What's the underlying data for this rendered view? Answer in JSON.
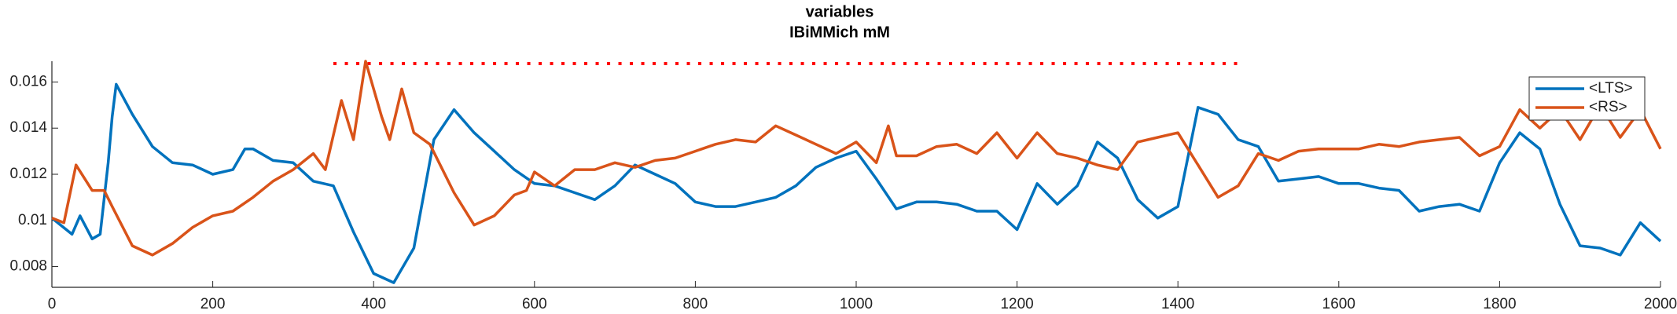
{
  "chart_data": {
    "type": "line",
    "title": "variables",
    "subtitle": "IBiMMich mM",
    "xlim": [
      0,
      2000
    ],
    "xticks": [
      0,
      200,
      400,
      600,
      800,
      1000,
      1200,
      1400,
      1600,
      1800,
      2000
    ],
    "ylim": [
      0.0071,
      0.0169
    ],
    "yticks": [
      0.008,
      0.01,
      0.012,
      0.014,
      0.016
    ],
    "grid": false,
    "legend": "northeast",
    "dotted_line": {
      "x": [
        350,
        1480
      ],
      "value": 0.0168,
      "color": "#ff0000"
    },
    "series": [
      {
        "name": "<LTS>",
        "color": "#0072bd",
        "x": [
          0,
          25,
          35,
          50,
          60,
          70,
          75,
          80,
          100,
          125,
          150,
          175,
          200,
          225,
          240,
          250,
          275,
          300,
          325,
          350,
          375,
          400,
          425,
          450,
          475,
          500,
          525,
          550,
          575,
          600,
          625,
          650,
          675,
          700,
          725,
          750,
          775,
          800,
          825,
          850,
          875,
          900,
          925,
          950,
          975,
          1000,
          1025,
          1050,
          1075,
          1100,
          1125,
          1150,
          1175,
          1200,
          1225,
          1250,
          1275,
          1300,
          1325,
          1350,
          1375,
          1400,
          1425,
          1450,
          1475,
          1500,
          1525,
          1550,
          1575,
          1600,
          1625,
          1650,
          1675,
          1700,
          1725,
          1750,
          1775,
          1800,
          1825,
          1850,
          1875,
          1900,
          1925,
          1950,
          1975,
          2000
        ],
        "values": [
          0.0101,
          0.0094,
          0.0102,
          0.0092,
          0.0094,
          0.0125,
          0.0145,
          0.0159,
          0.0146,
          0.0132,
          0.0125,
          0.0124,
          0.012,
          0.0122,
          0.0131,
          0.0131,
          0.0126,
          0.0125,
          0.0117,
          0.0115,
          0.0095,
          0.0077,
          0.0073,
          0.0088,
          0.0135,
          0.0148,
          0.0138,
          0.013,
          0.0122,
          0.0116,
          0.0115,
          0.0112,
          0.0109,
          0.0115,
          0.0124,
          0.012,
          0.0116,
          0.0108,
          0.0106,
          0.0106,
          0.0108,
          0.011,
          0.0115,
          0.0123,
          0.0127,
          0.013,
          0.0118,
          0.0105,
          0.0108,
          0.0108,
          0.0107,
          0.0104,
          0.0104,
          0.0096,
          0.0116,
          0.0107,
          0.0115,
          0.0134,
          0.0127,
          0.0109,
          0.0101,
          0.0106,
          0.0149,
          0.0146,
          0.0135,
          0.0132,
          0.0117,
          0.0118,
          0.0119,
          0.0116,
          0.0116,
          0.0114,
          0.0113,
          0.0104,
          0.0106,
          0.0107,
          0.0104,
          0.0125,
          0.0138,
          0.0131,
          0.0107,
          0.0089,
          0.0088,
          0.0085,
          0.0099,
          0.0091
        ]
      },
      {
        "name": "<RS>",
        "color": "#d95319",
        "x": [
          0,
          15,
          30,
          50,
          65,
          75,
          100,
          125,
          150,
          175,
          200,
          225,
          250,
          275,
          300,
          325,
          340,
          360,
          375,
          390,
          410,
          420,
          435,
          450,
          470,
          500,
          525,
          550,
          575,
          590,
          600,
          625,
          650,
          675,
          700,
          725,
          750,
          775,
          800,
          825,
          850,
          875,
          900,
          925,
          950,
          975,
          1000,
          1025,
          1040,
          1050,
          1075,
          1100,
          1125,
          1150,
          1175,
          1200,
          1225,
          1250,
          1275,
          1300,
          1325,
          1350,
          1375,
          1400,
          1425,
          1450,
          1475,
          1500,
          1525,
          1550,
          1575,
          1600,
          1625,
          1650,
          1675,
          1700,
          1725,
          1750,
          1775,
          1800,
          1825,
          1850,
          1875,
          1900,
          1925,
          1950,
          1975,
          2000
        ],
        "values": [
          0.0101,
          0.0099,
          0.0124,
          0.0113,
          0.0113,
          0.0106,
          0.0089,
          0.0085,
          0.009,
          0.0097,
          0.0102,
          0.0104,
          0.011,
          0.0117,
          0.0122,
          0.0129,
          0.0122,
          0.0152,
          0.0135,
          0.0169,
          0.0145,
          0.0135,
          0.0157,
          0.0138,
          0.0133,
          0.0112,
          0.0098,
          0.0102,
          0.0111,
          0.0113,
          0.0121,
          0.0115,
          0.0122,
          0.0122,
          0.0125,
          0.0123,
          0.0126,
          0.0127,
          0.013,
          0.0133,
          0.0135,
          0.0134,
          0.0141,
          0.0137,
          0.0133,
          0.0129,
          0.0134,
          0.0125,
          0.0141,
          0.0128,
          0.0128,
          0.0132,
          0.0133,
          0.0129,
          0.0138,
          0.0127,
          0.0138,
          0.0129,
          0.0127,
          0.0124,
          0.0122,
          0.0134,
          0.0136,
          0.0138,
          0.0124,
          0.011,
          0.0115,
          0.0129,
          0.0126,
          0.013,
          0.0131,
          0.0131,
          0.0131,
          0.0133,
          0.0132,
          0.0134,
          0.0135,
          0.0136,
          0.0128,
          0.0132,
          0.0148,
          0.014,
          0.0148,
          0.0135,
          0.015,
          0.0136,
          0.0148,
          0.0131
        ]
      }
    ]
  }
}
